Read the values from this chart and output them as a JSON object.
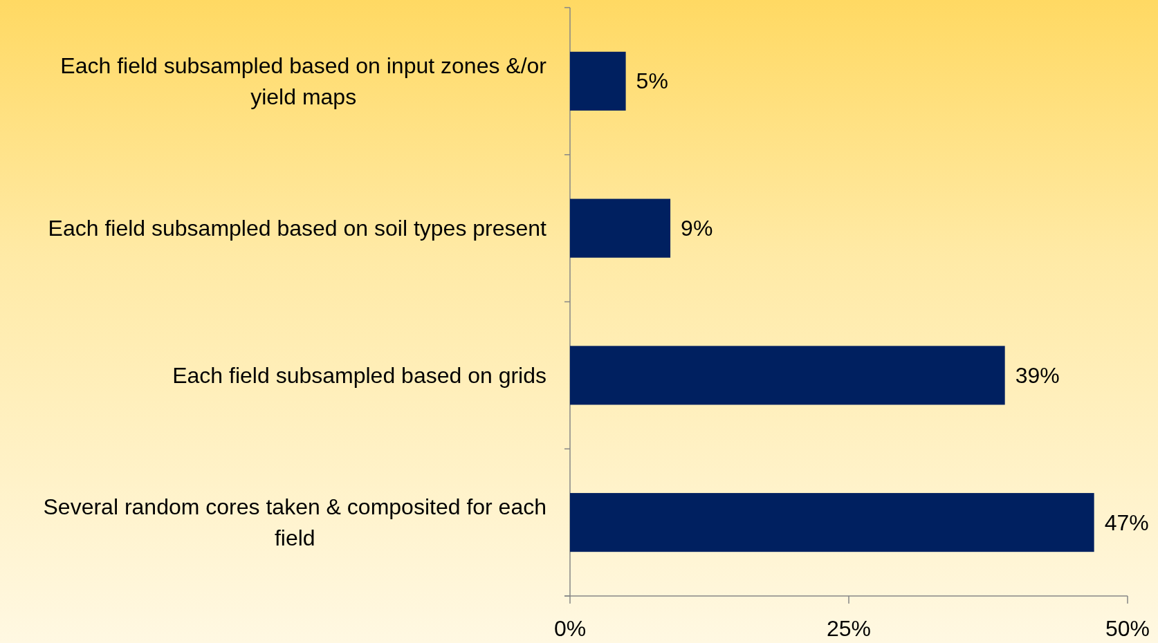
{
  "chart_data": {
    "type": "bar",
    "orientation": "horizontal",
    "categories": [
      "Each field subsampled based on input zones &/or yield maps",
      "Each field subsampled based on soil types present",
      "Each field subsampled based on grids",
      "Several random cores taken & composited for each field"
    ],
    "values": [
      5,
      9,
      39,
      47
    ],
    "value_labels": [
      "5%",
      "9%",
      "39%",
      "47%"
    ],
    "color": "#002060",
    "xlim": [
      0,
      50
    ],
    "xticks": [
      {
        "value": 0,
        "label": "0%"
      },
      {
        "value": 25,
        "label": "25%"
      },
      {
        "value": 50,
        "label": "50%"
      }
    ]
  }
}
